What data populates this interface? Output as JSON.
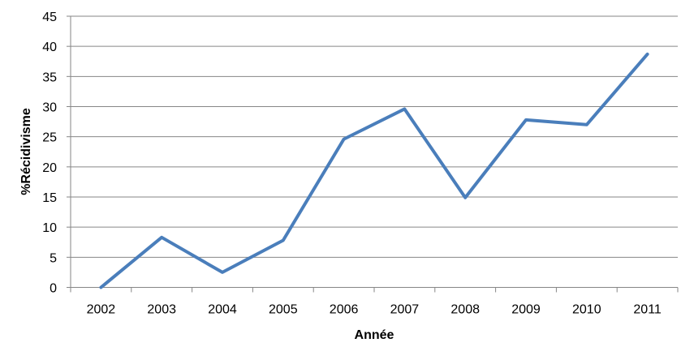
{
  "chart_data": {
    "type": "line",
    "title": "",
    "xlabel": "Année",
    "ylabel": "%Récidivisme",
    "categories": [
      "2002",
      "2003",
      "2004",
      "2005",
      "2006",
      "2007",
      "2008",
      "2009",
      "2010",
      "2011"
    ],
    "series": [
      {
        "values": [
          0,
          8.3,
          2.5,
          7.8,
          24.6,
          29.6,
          14.9,
          27.8,
          27.0,
          38.7
        ],
        "color": "#4a7ebb"
      }
    ],
    "ylim": [
      0,
      45
    ],
    "yticks": [
      0,
      5,
      10,
      15,
      20,
      25,
      30,
      35,
      40,
      45
    ],
    "grid": true,
    "legend": "none"
  }
}
